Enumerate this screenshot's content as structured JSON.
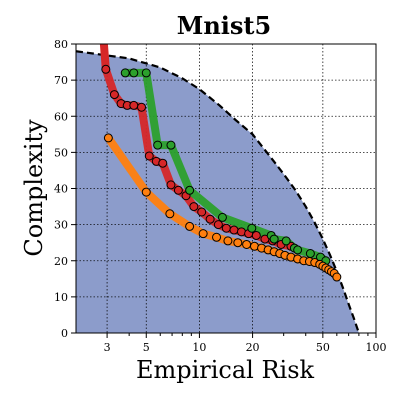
{
  "chart_data": {
    "type": "scatter",
    "title": "Mnist5",
    "xlabel": "Empirical Risk",
    "ylabel": "Complexity",
    "x_scale": "log",
    "xlim": [
      2,
      100
    ],
    "ylim": [
      0,
      80
    ],
    "x_ticks": [
      3,
      5,
      10,
      20,
      50,
      100
    ],
    "x_tick_labels": [
      "3",
      "5",
      "10",
      "20",
      "50",
      "100"
    ],
    "y_ticks": [
      0,
      10,
      20,
      30,
      40,
      50,
      60,
      70,
      80
    ],
    "y_tick_labels": [
      "0",
      "10",
      "20",
      "30",
      "40",
      "50",
      "60",
      "70",
      "80"
    ],
    "grid": true,
    "frontier": {
      "fill_color": "#8c9ccb",
      "line_color": "#000000",
      "line_style": "dashed",
      "x": [
        2.0,
        4,
        6,
        8,
        10,
        13,
        16,
        20,
        25,
        30,
        35,
        40,
        45,
        50,
        55,
        60,
        65,
        70,
        75,
        80
      ],
      "y": [
        78,
        76,
        73.5,
        70.5,
        67.5,
        63,
        59,
        55,
        49,
        44,
        39.5,
        35,
        30.5,
        26,
        21.5,
        17,
        12.5,
        8,
        4,
        0
      ]
    },
    "series": [
      {
        "color": "#d62728",
        "x": [
          2.95,
          3.3,
          3.6,
          3.9,
          4.25,
          4.7,
          5.2,
          5.7,
          6.2,
          6.9,
          7.6,
          8.4,
          9.3,
          10.3,
          11.5,
          12.8,
          14.2,
          15.7,
          17.3,
          19,
          21,
          23.5,
          26,
          29,
          33
        ],
        "y": [
          73,
          66,
          63.5,
          63,
          63,
          62.5,
          49,
          47.5,
          47,
          41,
          39.5,
          38,
          35,
          33.5,
          31.5,
          30,
          29,
          28.5,
          28,
          27.5,
          27,
          26,
          25.5,
          24.5,
          24
        ]
      },
      {
        "color": "#2ca02c",
        "x": [
          3.8,
          4.25,
          5.0,
          5.8,
          6.9,
          8.8,
          13.5,
          19.8,
          25.5,
          26.5,
          31,
          34.5,
          36,
          42.5,
          48.5,
          52
        ],
        "y": [
          72,
          72,
          72,
          52,
          52,
          39.5,
          32,
          29,
          27,
          26,
          25.5,
          23.5,
          23,
          22,
          21,
          20
        ]
      },
      {
        "color": "#ff7f0e",
        "x": [
          3.05,
          5.0,
          6.8,
          8.8,
          10.5,
          12.5,
          14.5,
          16.5,
          18.5,
          20.5,
          22.5,
          24.5,
          26.5,
          28.5,
          30.5,
          33,
          36,
          39,
          42,
          45,
          48,
          50,
          52,
          54,
          56,
          58,
          60
        ],
        "y": [
          54,
          39,
          33,
          29.5,
          27.5,
          26.5,
          25.5,
          25,
          24.5,
          24,
          23.5,
          23,
          22.5,
          22,
          21.5,
          21,
          20.5,
          20,
          19.8,
          19.5,
          19,
          18.5,
          18,
          17.5,
          17,
          16.5,
          15.5
        ]
      }
    ]
  }
}
